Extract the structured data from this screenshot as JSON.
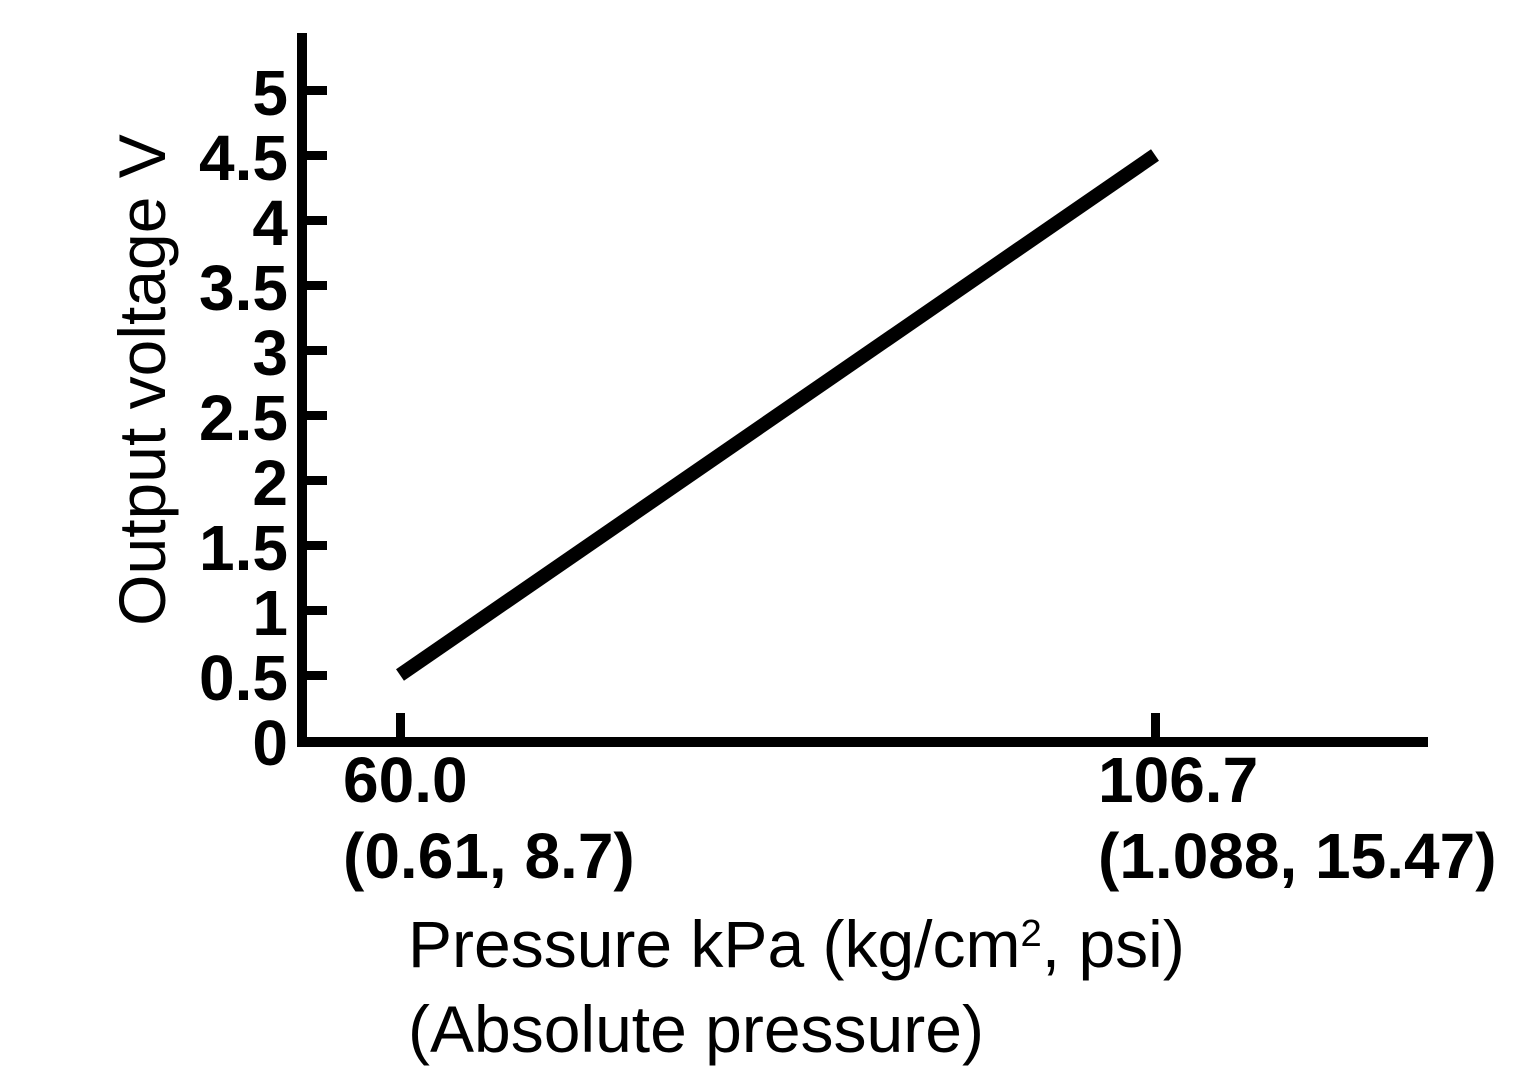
{
  "chart_data": {
    "type": "line",
    "title": "",
    "ylabel": "Output voltage V",
    "xlabel": "Pressure kPa (kg/cm2, psi) (Absolute pressure)",
    "xlabel_parts": {
      "prefix": "Pressure kPa (kg/cm",
      "superscript": "2",
      "suffix": ", psi)"
    },
    "xlabel_line2": "(Absolute pressure)",
    "xlim": [
      60.0,
      106.7
    ],
    "ylim": [
      0,
      5
    ],
    "y_ticks": [
      "0",
      "0.5",
      "1",
      "1.5",
      "2",
      "2.5",
      "3",
      "3.5",
      "4",
      "4.5",
      "5"
    ],
    "x_ticks": [
      {
        "value": 60.0,
        "label": "60.0",
        "sublabel": "(0.61, 8.7)"
      },
      {
        "value": 106.7,
        "label": "106.7",
        "sublabel": "(1.088, 15.47)"
      }
    ],
    "series": [
      {
        "name": "output-voltage-vs-absolute-pressure",
        "points": [
          [
            60.0,
            0.5
          ],
          [
            106.7,
            4.5
          ]
        ]
      }
    ],
    "grid": false,
    "legend": false,
    "line_color": "#000000",
    "axis_color": "#000000",
    "background": "#ffffff"
  }
}
